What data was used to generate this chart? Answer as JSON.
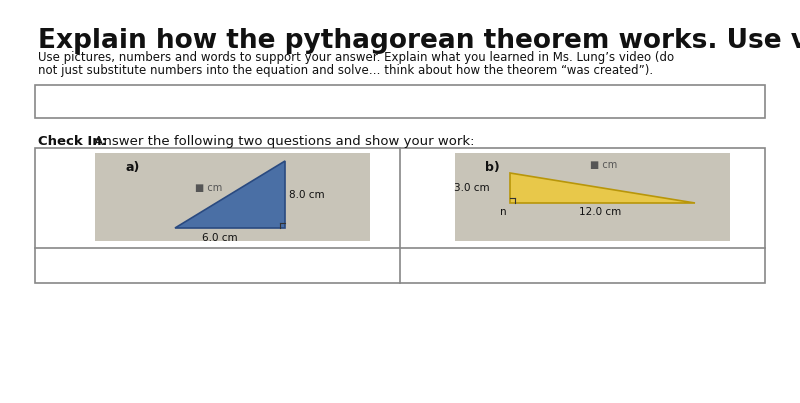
{
  "title": "Explain how the pythagorean theorem works. Use visuals.",
  "subtitle_line1": "Use pictures, numbers and words to support your answer. Explain what you learned in Ms. Lung’s video (do",
  "subtitle_line2": "not just substitute numbers into the equation and solve… think about how the theorem “was created”).",
  "check_in_bold": "Check In:",
  "check_in_rest": " Answer the following two questions and show your work:",
  "bg_color": "#ffffff",
  "panel_bg": "#c8c4b8",
  "triangle_a_color": "#4a6fa5",
  "triangle_b_color": "#e8c84a",
  "triangle_a_label": "a)",
  "triangle_b_label": "b)",
  "tri_a_side_label": "cm",
  "tri_a_hyp_label": "8.0 cm",
  "tri_a_base_label": "6.0 cm",
  "tri_b_side_label": "cm",
  "tri_b_hyp_label": "cm",
  "tri_b_left_label": "3.0 cm",
  "tri_b_bottom_label": "12.0 cm",
  "tri_b_n_label": "n"
}
